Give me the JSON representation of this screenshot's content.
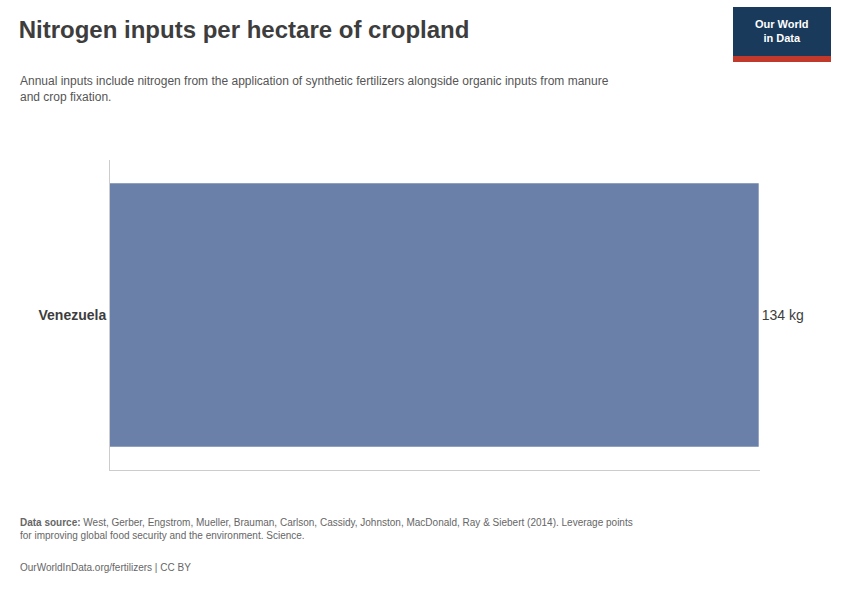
{
  "chart_data": {
    "type": "bar",
    "orientation": "horizontal",
    "title": "Nitrogen inputs per hectare of cropland",
    "subtitle": "Annual inputs include nitrogen from the application of synthetic fertilizers alongside organic inputs from manure\nand crop fixation.",
    "categories": [
      "Venezuela"
    ],
    "values": [
      134
    ],
    "value_labels": [
      "134 kg"
    ],
    "data_labels": true,
    "color": "#6b80a8",
    "xlim": [
      0,
      134.268
    ],
    "xticks": [],
    "tick_labels": "y",
    "grid": false,
    "annotations": [
      "Data source:",
      " West, Gerber, Engstrom, Mueller, Brauman, Carlson, Cassidy, Johnston, MacDonald, Ray & Siebert (2014). Leverage points\nfor improving global food security and the environment. Science.",
      "OurWorldInData.org/fertilizers | CC BY",
      "Our World\nin Data"
    ]
  }
}
